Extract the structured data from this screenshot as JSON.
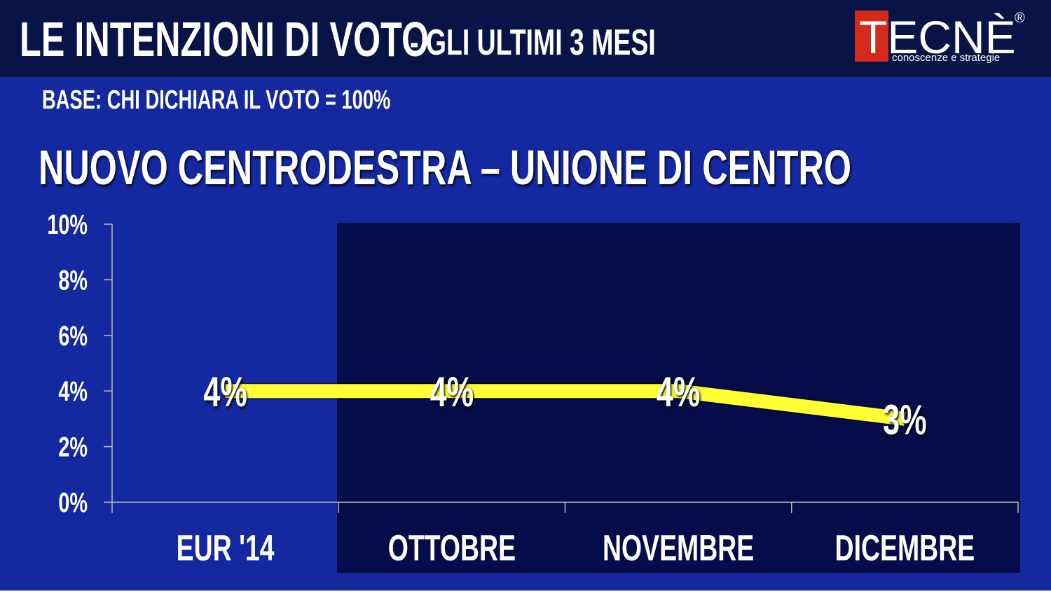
{
  "header": {
    "title": "LE INTENZIONI DI VOTO",
    "subtitle": "-  GLI ULTIMI 3 MESI",
    "logo": "TECNÈ",
    "logo_mark": "®",
    "logo_tagline": "conoscenze e strategie"
  },
  "base_note": "BASE: CHI DICHIARA IL VOTO = 100%",
  "chart_data": {
    "type": "line",
    "title": "NUOVO CENTRODESTRA – UNIONE DI CENTRO",
    "categories": [
      "EUR '14",
      "OTTOBRE",
      "NOVEMBRE",
      "DICEMBRE"
    ],
    "values": [
      4,
      4,
      4,
      3
    ],
    "value_labels": [
      "4%",
      "4%",
      "4%",
      "3%"
    ],
    "color": "#ffff33",
    "ylim": [
      0,
      10
    ],
    "yticks": [
      {
        "value": 0,
        "label": "0%"
      },
      {
        "value": 2,
        "label": "2%"
      },
      {
        "value": 4,
        "label": "4%"
      },
      {
        "value": 6,
        "label": "6%"
      },
      {
        "value": 8,
        "label": "8%"
      },
      {
        "value": 10,
        "label": "10%"
      }
    ]
  }
}
